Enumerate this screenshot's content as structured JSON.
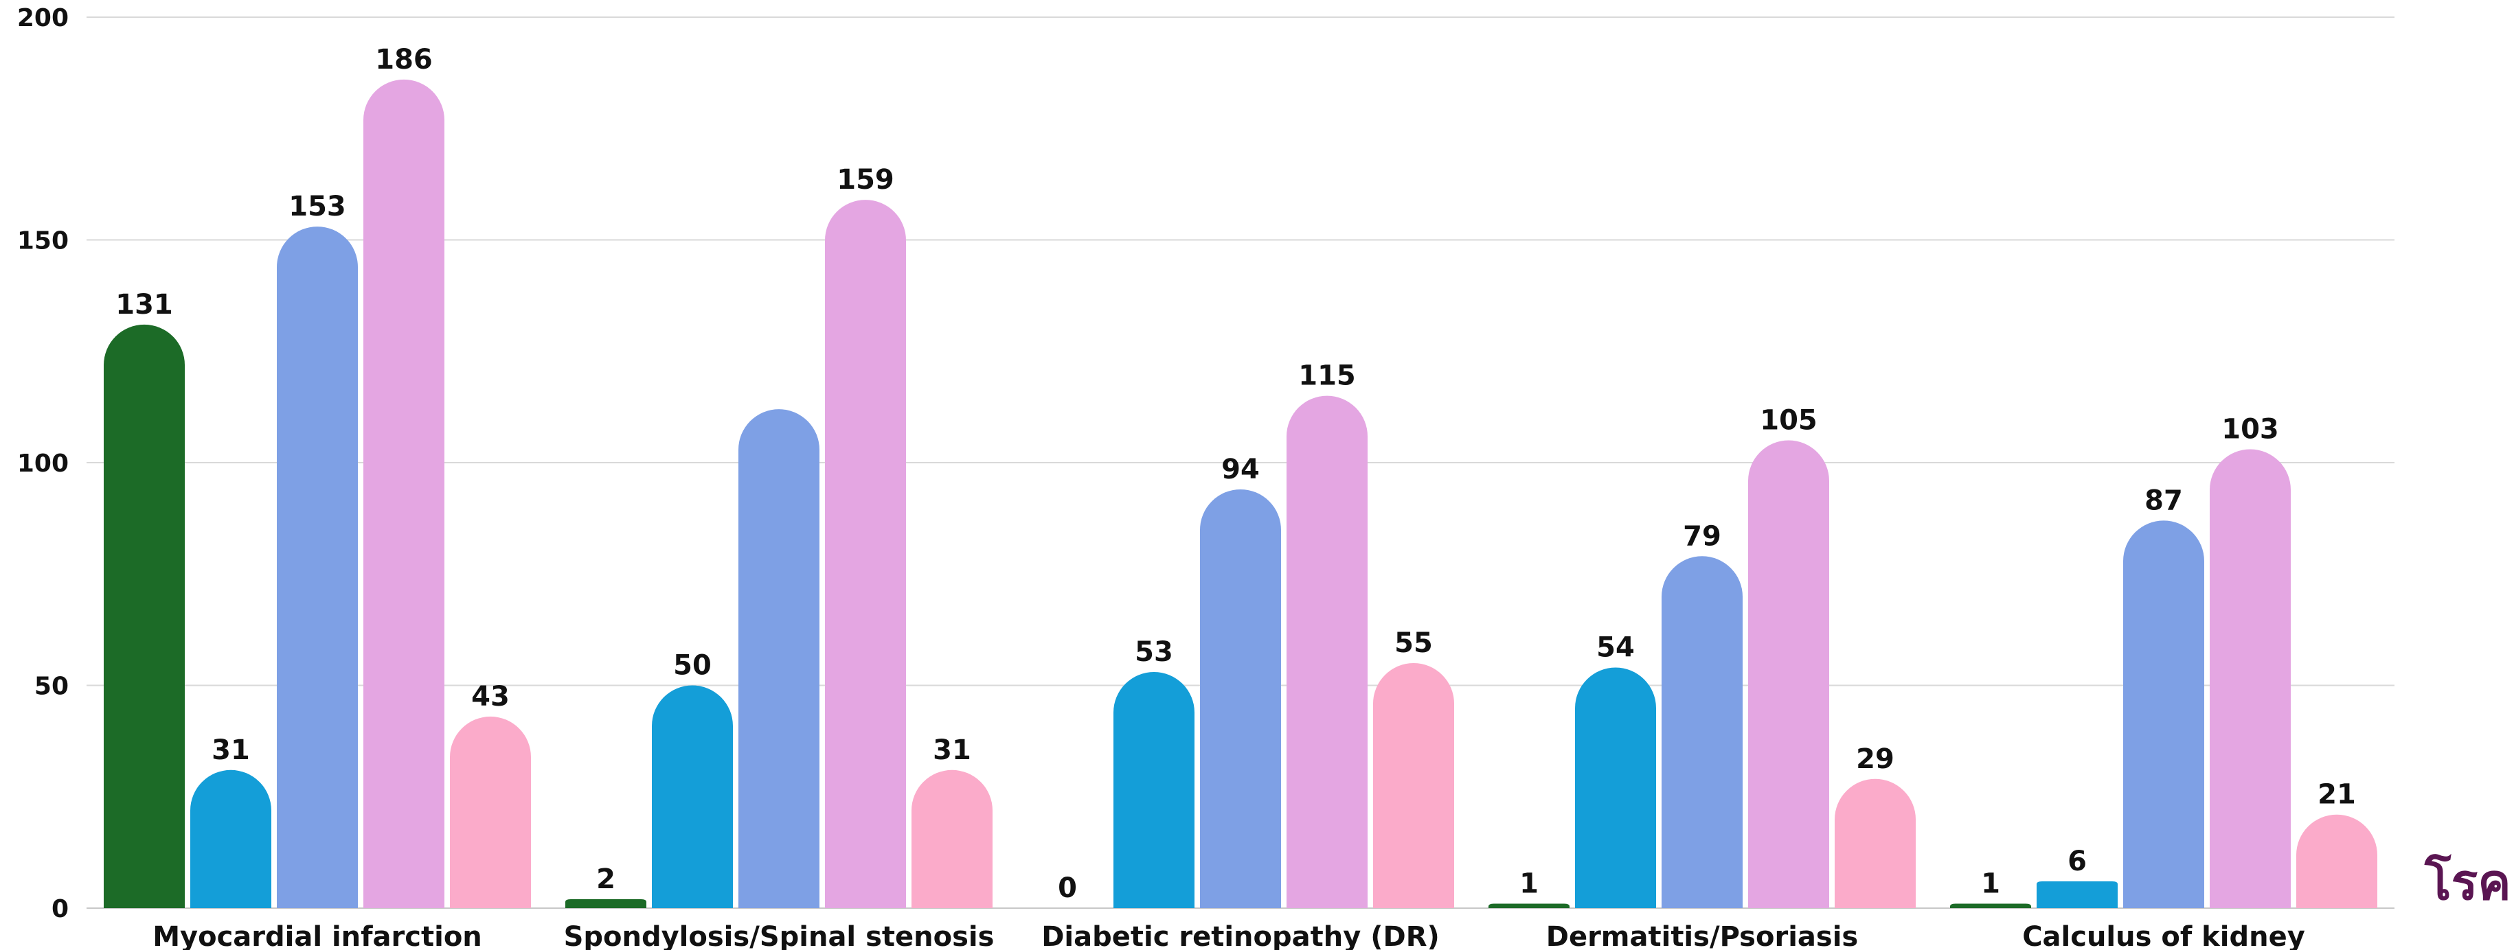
{
  "chart_data": {
    "type": "bar",
    "categories": [
      "Myocardial infarction",
      "Spondylosis/Spinal stenosis",
      "Diabetic retinopathy (DR)",
      "Dermatitis/Psoriasis",
      "Calculus of kidney"
    ],
    "series": [
      {
        "color": "#1c6b27",
        "values": [
          131,
          2,
          0,
          1,
          1
        ]
      },
      {
        "color": "#149ed8",
        "values": [
          31,
          50,
          53,
          54,
          6
        ]
      },
      {
        "color": "#7ea0e5",
        "values": [
          153,
          112,
          94,
          79,
          87
        ]
      },
      {
        "color": "#e4a6e2",
        "values": [
          186,
          159,
          115,
          105,
          103
        ]
      },
      {
        "color": "#fbabca",
        "values": [
          43,
          31,
          55,
          29,
          21
        ]
      }
    ],
    "data_labels_shown": [
      [
        true,
        true,
        true,
        true,
        true
      ],
      [
        true,
        true,
        false,
        true,
        true
      ],
      [
        true,
        true,
        true,
        true,
        true
      ],
      [
        true,
        true,
        true,
        true,
        true
      ],
      [
        true,
        true,
        true,
        true,
        true
      ]
    ],
    "ylim": [
      0,
      200
    ],
    "yticks": [
      "0",
      "50",
      "100",
      "150",
      "200"
    ],
    "grid": true,
    "xlabel": "โรค",
    "xlabel_color": "#5a1552"
  }
}
